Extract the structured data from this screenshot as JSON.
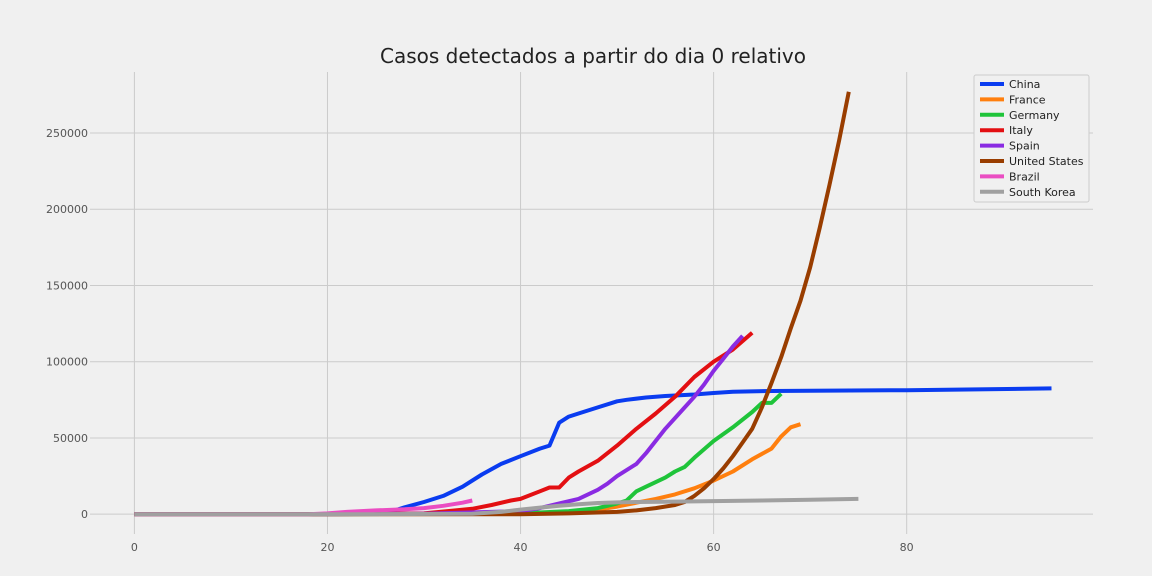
{
  "chart_data": {
    "type": "line",
    "title": "Casos detectados a partir do dia 0 relativo",
    "xlabel": "",
    "ylabel": "",
    "xlim": [
      -4.6,
      99.3
    ],
    "ylim": [
      -13000,
      290000
    ],
    "xticks": [
      0,
      20,
      40,
      60,
      80
    ],
    "yticks": [
      0,
      50000,
      100000,
      150000,
      200000,
      250000
    ],
    "grid": true,
    "legend_position": "top-right",
    "series": [
      {
        "name": "China",
        "color": "#0a3cf0",
        "x": [
          0,
          10,
          20,
          26,
          28,
          30,
          32,
          34,
          36,
          38,
          40,
          42,
          43,
          44,
          45,
          46,
          48,
          50,
          51,
          53,
          55,
          58,
          60,
          62,
          66,
          70,
          80,
          95
        ],
        "y": [
          0,
          0,
          0,
          500,
          4500,
          8000,
          12000,
          18000,
          26000,
          33000,
          38000,
          43000,
          45000,
          60000,
          64000,
          66000,
          70000,
          74000,
          75000,
          76500,
          77500,
          78500,
          79500,
          80300,
          80800,
          81000,
          81300,
          82500
        ]
      },
      {
        "name": "France",
        "color": "#ff7f0e",
        "x": [
          0,
          20,
          40,
          45,
          48,
          50,
          52,
          54,
          56,
          58,
          60,
          62,
          64,
          66,
          67,
          68,
          69
        ],
        "y": [
          0,
          0,
          500,
          1500,
          3000,
          5000,
          7500,
          10000,
          13000,
          17000,
          22000,
          28000,
          36000,
          43000,
          51000,
          57000,
          59000
        ]
      },
      {
        "name": "Germany",
        "color": "#1fc43a",
        "x": [
          0,
          20,
          40,
          45,
          48,
          50,
          51,
          52,
          53,
          55,
          56,
          57,
          58,
          60,
          62,
          64,
          65,
          66,
          67
        ],
        "y": [
          0,
          0,
          500,
          2000,
          4000,
          7000,
          9000,
          15000,
          18000,
          24000,
          28000,
          31000,
          37000,
          48000,
          57000,
          67000,
          73000,
          73000,
          79000
        ]
      },
      {
        "name": "Italy",
        "color": "#e30f12",
        "x": [
          0,
          20,
          30,
          35,
          37,
          39,
          40,
          42,
          43,
          44,
          45,
          46,
          48,
          50,
          52,
          54,
          56,
          58,
          60,
          62,
          64
        ],
        "y": [
          0,
          0,
          500,
          3500,
          6000,
          9000,
          10000,
          15000,
          17500,
          17500,
          24000,
          28000,
          35000,
          45000,
          56000,
          66000,
          77000,
          90000,
          100000,
          108000,
          119000
        ]
      },
      {
        "name": "Spain",
        "color": "#8a2be2",
        "x": [
          0,
          20,
          30,
          40,
          42,
          44,
          46,
          48,
          49,
          50,
          52,
          53,
          55,
          57,
          58,
          59,
          60,
          61,
          62,
          63
        ],
        "y": [
          0,
          0,
          300,
          2000,
          4000,
          7000,
          10000,
          16000,
          20000,
          25000,
          33000,
          40000,
          56000,
          70000,
          77000,
          85000,
          94000,
          102000,
          110000,
          117000
        ]
      },
      {
        "name": "United States",
        "color": "#993d00",
        "x": [
          0,
          20,
          40,
          45,
          50,
          52,
          54,
          56,
          57,
          58,
          59,
          60,
          61,
          62,
          63,
          64,
          65,
          66,
          67,
          68,
          69,
          70,
          71,
          72,
          73,
          74
        ],
        "y": [
          0,
          0,
          0,
          500,
          1500,
          2500,
          4000,
          6000,
          8000,
          12000,
          17000,
          23000,
          30000,
          38000,
          47000,
          56000,
          70000,
          86000,
          103000,
          122000,
          140000,
          162000,
          188000,
          216000,
          245000,
          277000
        ]
      },
      {
        "name": "Brazil",
        "color": "#ea4dc2",
        "x": [
          0,
          18,
          20,
          22,
          25,
          28,
          30,
          32,
          34,
          35
        ],
        "y": [
          0,
          0,
          500,
          1500,
          2500,
          3200,
          4000,
          5500,
          7500,
          9000
        ]
      },
      {
        "name": "South Korea",
        "color": "#a0a0a0",
        "x": [
          0,
          25,
          35,
          38,
          40,
          42,
          44,
          46,
          48,
          50,
          52,
          55,
          60,
          65,
          70,
          75
        ],
        "y": [
          0,
          0,
          300,
          1500,
          3000,
          4300,
          5500,
          6500,
          7300,
          7700,
          8000,
          8200,
          8600,
          9000,
          9500,
          10000
        ]
      }
    ]
  }
}
